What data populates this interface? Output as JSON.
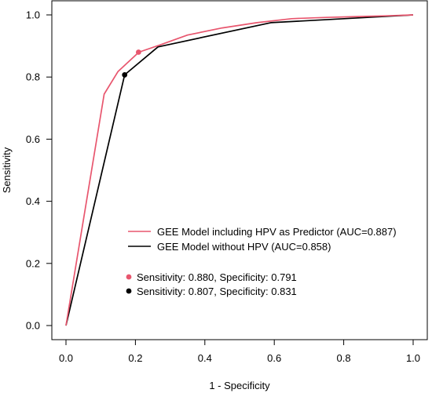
{
  "chart_data": {
    "type": "line",
    "xlabel": "1 - Specificity",
    "ylabel": "Sensitivity",
    "xlim": [
      0,
      1
    ],
    "ylim": [
      0,
      1
    ],
    "xticks": [
      "0.0",
      "0.2",
      "0.4",
      "0.6",
      "0.8",
      "1.0"
    ],
    "yticks": [
      "0.0",
      "0.2",
      "0.4",
      "0.6",
      "0.8",
      "1.0"
    ],
    "grid": false,
    "legend_position": "bottom-right",
    "series": [
      {
        "name": "GEE Model including HPV as Predictor (AUC=0.887)",
        "color": "#e8566e",
        "x": [
          0,
          0.11,
          0.15,
          0.21,
          0.27,
          0.35,
          0.45,
          0.55,
          0.65,
          0.75,
          0.85,
          0.92,
          1.0
        ],
        "y": [
          0,
          0.745,
          0.818,
          0.88,
          0.903,
          0.935,
          0.958,
          0.975,
          0.988,
          0.992,
          0.995,
          0.997,
          1.0
        ]
      },
      {
        "name": "GEE Model without HPV (AUC=0.858)",
        "color": "#000000",
        "x": [
          0,
          0.169,
          0.265,
          0.59,
          1.0
        ],
        "y": [
          0,
          0.807,
          0.897,
          0.975,
          1.0
        ]
      }
    ],
    "points": [
      {
        "label": "Sensitivity: 0.880, Specificity: 0.791",
        "color": "#e8566e",
        "x": 0.209,
        "y": 0.88
      },
      {
        "label": "Sensitivity: 0.807, Specificity: 0.831",
        "color": "#000000",
        "x": 0.169,
        "y": 0.807
      }
    ]
  }
}
